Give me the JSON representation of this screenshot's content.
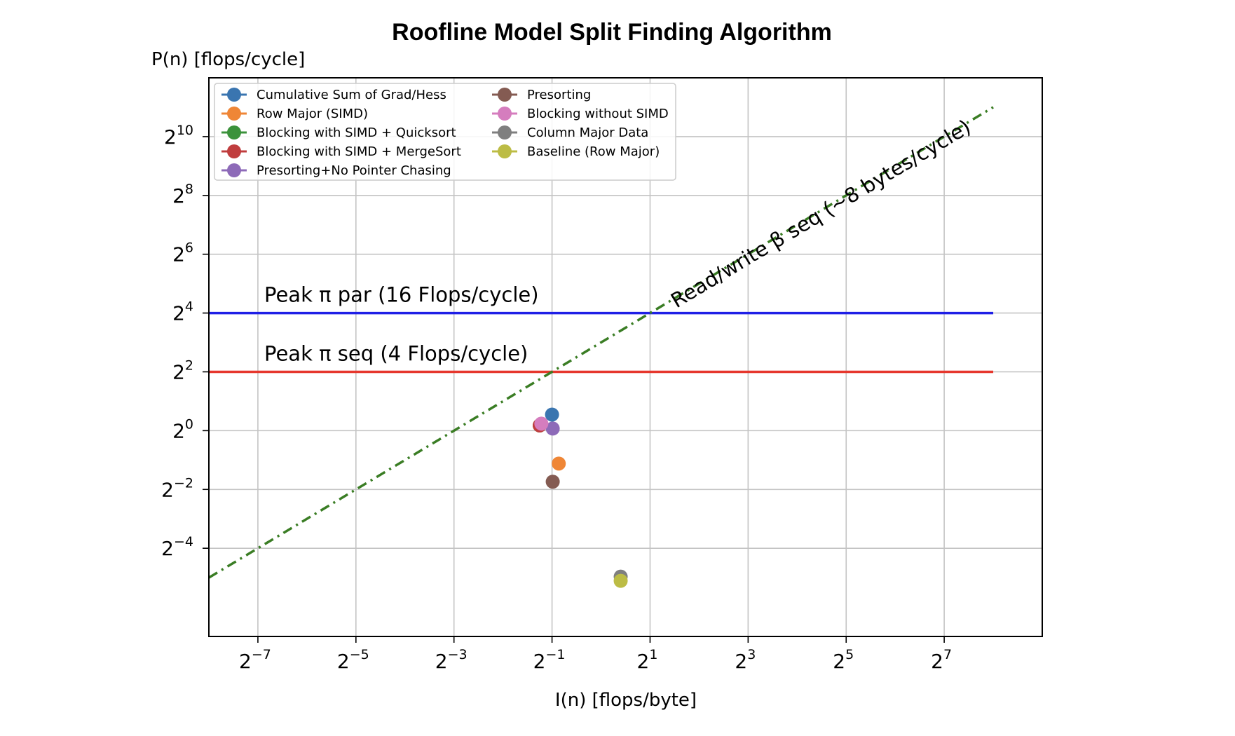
{
  "chart_data": {
    "type": "scatter",
    "title": "Roofline Model Split Finding Algorithm",
    "xlabel": "I(n) [flops/byte]",
    "ylabel": "P(n) [flops/cycle]",
    "x_scale": "log2",
    "y_scale": "log2",
    "xlim": [
      0.00390625,
      512
    ],
    "ylim": [
      0.0078125,
      4096
    ],
    "grid": true,
    "legend_position": "top-left",
    "x_ticks": [
      {
        "base": "2",
        "exp": "−7",
        "value": 0.0078125
      },
      {
        "base": "2",
        "exp": "−5",
        "value": 0.03125
      },
      {
        "base": "2",
        "exp": "−3",
        "value": 0.125
      },
      {
        "base": "2",
        "exp": "−1",
        "value": 0.5
      },
      {
        "base": "2",
        "exp": "1",
        "value": 2
      },
      {
        "base": "2",
        "exp": "3",
        "value": 8
      },
      {
        "base": "2",
        "exp": "5",
        "value": 32
      },
      {
        "base": "2",
        "exp": "7",
        "value": 128
      }
    ],
    "y_ticks": [
      {
        "base": "2",
        "exp": "10",
        "value": 1024
      },
      {
        "base": "2",
        "exp": "8",
        "value": 256
      },
      {
        "base": "2",
        "exp": "6",
        "value": 64
      },
      {
        "base": "2",
        "exp": "4",
        "value": 16
      },
      {
        "base": "2",
        "exp": "2",
        "value": 4
      },
      {
        "base": "2",
        "exp": "0",
        "value": 1
      },
      {
        "base": "2",
        "exp": "−2",
        "value": 0.25
      },
      {
        "base": "2",
        "exp": "−4",
        "value": 0.0625
      }
    ],
    "rooflines": [
      {
        "label": "Peak π par (16 Flops/cycle)",
        "y": 16,
        "x_range": [
          0.00390625,
          256
        ],
        "color": "#1f1fe6",
        "style": "solid"
      },
      {
        "label": "Peak π seq (4 Flops/cycle)",
        "y": 4,
        "x_range": [
          0.00390625,
          256
        ],
        "color": "#e6372d",
        "style": "solid"
      }
    ],
    "bandwidth_line": {
      "label": "Read/write β seq (~8 bytes/cycle)",
      "bytes_per_cycle": 8,
      "x_range": [
        0.00390625,
        256
      ],
      "color": "#3a7d24",
      "style": "dashdot"
    },
    "series": [
      {
        "name": "Cumulative Sum of Grad/Hess",
        "color": "#3a75b0",
        "x": [
          0.5
        ],
        "y": [
          1.46
        ]
      },
      {
        "name": "Row Major (SIMD)",
        "color": "#ef8636",
        "x": [
          0.55
        ],
        "y": [
          0.46
        ]
      },
      {
        "name": "Blocking with SIMD + Quicksort",
        "color": "#3b923b",
        "x": [
          0.42
        ],
        "y": [
          1.13
        ]
      },
      {
        "name": "Blocking with SIMD + MergeSort",
        "color": "#c03d3e",
        "x": [
          0.42
        ],
        "y": [
          1.13
        ]
      },
      {
        "name": "Presorting+No Pointer Chasing",
        "color": "#8d6ab8",
        "x": [
          0.505
        ],
        "y": [
          1.05
        ]
      },
      {
        "name": "Presorting",
        "color": "#845b52",
        "x": [
          0.505
        ],
        "y": [
          0.3
        ]
      },
      {
        "name": "Blocking without SIMD",
        "color": "#d57dbe",
        "x": [
          0.43
        ],
        "y": [
          1.18
        ]
      },
      {
        "name": "Column Major Data",
        "color": "#7f7f7f",
        "x": [
          1.32
        ],
        "y": [
          0.032
        ]
      },
      {
        "name": "Baseline (Row Major)",
        "color": "#bcbc45",
        "x": [
          1.32
        ],
        "y": [
          0.029
        ]
      }
    ]
  }
}
